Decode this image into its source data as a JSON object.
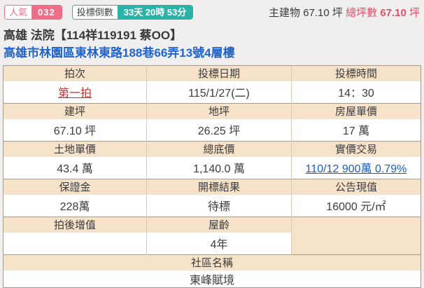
{
  "topbar": {
    "popularity_label": "人氣",
    "popularity_value": "032",
    "countdown_label": "投標倒數",
    "countdown_value": "33天 20時 53分",
    "main_building_label": "主建物",
    "main_building_value": "67.10 坪",
    "total_area_label": "總坪數",
    "total_area_value": "67.10",
    "total_area_unit": "坪"
  },
  "header": {
    "title": "高雄 法院【114祥119191 蔡OO】",
    "address": "高雄市林園區東林東路188巷66弄13號4層樓"
  },
  "table": {
    "auction_round": {
      "label": "拍次",
      "value": "第一拍"
    },
    "bid_date": {
      "label": "投標日期",
      "value": "115/1/27(二)"
    },
    "bid_time": {
      "label": "投標時間",
      "value": "14：30"
    },
    "building_area": {
      "label": "建坪",
      "value": "67.10 坪"
    },
    "land_area": {
      "label": "地坪",
      "value": "26.25 坪"
    },
    "house_unit_price": {
      "label": "房屋單價",
      "value": "17 萬"
    },
    "land_unit_price": {
      "label": "土地單價",
      "value": "43.4 萬"
    },
    "total_floor_price": {
      "label": "總底價",
      "value": "1,140.0 萬"
    },
    "actual_price_trade": {
      "label": "實價交易",
      "value": "110/12 900萬 0.79%"
    },
    "deposit": {
      "label": "保證金",
      "value": "228萬"
    },
    "bid_result": {
      "label": "開標結果",
      "value": "待標"
    },
    "announced_value": {
      "label": "公告現值",
      "value": "16000 元/㎡"
    },
    "post_auction_gain": {
      "label": "拍後增值",
      "value": ""
    },
    "house_age": {
      "label": "屋齡",
      "value": "4年"
    },
    "community_name": {
      "label": "社區名稱",
      "value": "東峰賦境"
    }
  },
  "colors": {
    "badge_pink": "#ee6e87",
    "badge_teal": "#2bb3a9",
    "accent_rose": "#e2506b",
    "link_blue": "#1a5cc8",
    "link_red": "#c53434",
    "address_blue": "#2163cd",
    "header_beige": "#f5e2c9",
    "page_background": "#f0efee"
  }
}
